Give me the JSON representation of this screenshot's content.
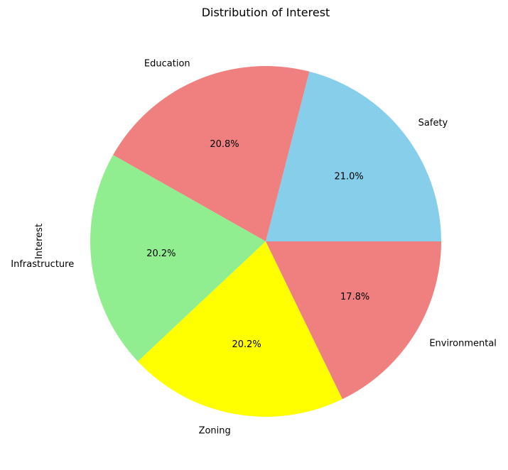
{
  "chart_data": {
    "type": "pie",
    "title": "Distribution of Interest",
    "ylabel": "Interest",
    "start_angle_deg": 0,
    "direction": "counterclockwise",
    "slices": [
      {
        "label": "Safety",
        "percent": 21.0,
        "percent_label": "21.0%",
        "color": "#87CEEB"
      },
      {
        "label": "Education",
        "percent": 20.8,
        "percent_label": "20.8%",
        "color": "#F08080"
      },
      {
        "label": "Infrastructure",
        "percent": 20.2,
        "percent_label": "20.2%",
        "color": "#90EE90"
      },
      {
        "label": "Zoning",
        "percent": 20.2,
        "percent_label": "20.2%",
        "color": "#FFFF00"
      },
      {
        "label": "Environmental",
        "percent": 17.8,
        "percent_label": "17.8%",
        "color": "#F08080"
      }
    ]
  }
}
